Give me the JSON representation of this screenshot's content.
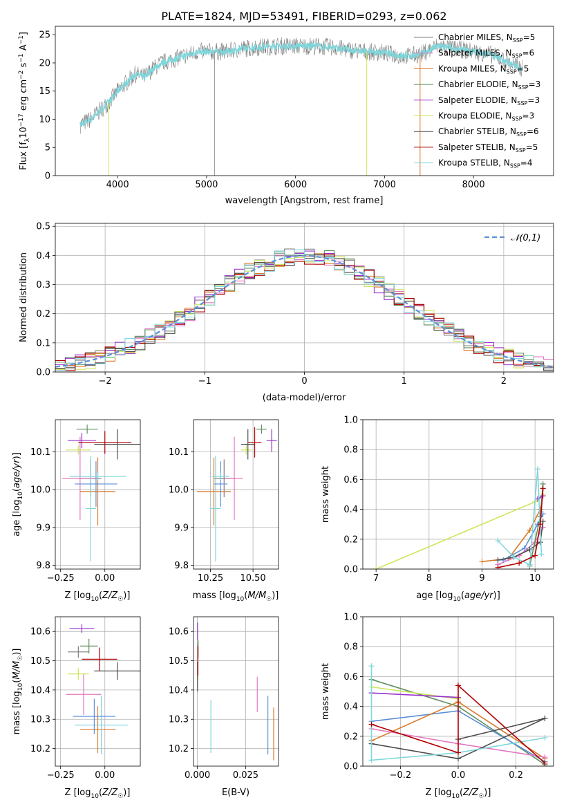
{
  "figure_title": "PLATE=1824, MJD=53491, FIBERID=0293, z=0.062",
  "colors": {
    "Chabrier MILES": "#7f7f7f",
    "Salpeter MILES": "#e377c2",
    "Kroupa MILES": "#d97a2a",
    "Chabrier ELODIE": "#5f8f5f",
    "Salpeter ELODIE": "#9933cc",
    "Kroupa ELODIE": "#cce65a",
    "Chabrier STELIB": "#4d4d4d",
    "Salpeter STELIB": "#b00000",
    "Kroupa STELIB": "#7fd6db",
    "gaussian": "#5b8fd9"
  },
  "model_order": [
    "Chabrier MILES",
    "Salpeter MILES",
    "Kroupa MILES",
    "Chabrier ELODIE",
    "Salpeter ELODIE",
    "Kroupa ELODIE",
    "Chabrier STELIB",
    "Salpeter STELIB",
    "Kroupa STELIB"
  ],
  "chart_data": [
    {
      "id": "spectrum",
      "type": "line",
      "xlabel": "wavelength [Angstrom, rest frame]",
      "ylabel": "Flux [f_λ 10^-17 erg cm^-2 s^-1 A^-1]",
      "xlim": [
        3300,
        8900
      ],
      "ylim": [
        0,
        26.5
      ],
      "xticks": [
        4000,
        5000,
        6000,
        7000,
        8000
      ],
      "yticks": [
        0,
        5,
        10,
        15,
        20,
        25
      ],
      "legend_position": "top-right",
      "legend": [
        {
          "base": "Chabrier MILES, N",
          "sub": "SSP",
          "tail": "=5"
        },
        {
          "base": "Salpeter MILES, N",
          "sub": "SSP",
          "tail": "=6"
        },
        {
          "base": "Kroupa MILES, N",
          "sub": "SSP",
          "tail": "=5"
        },
        {
          "base": "Chabrier ELODIE, N",
          "sub": "SSP",
          "tail": "=3"
        },
        {
          "base": "Salpeter ELODIE, N",
          "sub": "SSP",
          "tail": "=3"
        },
        {
          "base": "Kroupa ELODIE, N",
          "sub": "SSP",
          "tail": "=3"
        },
        {
          "base": "Chabrier STELIB, N",
          "sub": "SSP",
          "tail": "=6"
        },
        {
          "base": "Salpeter STELIB, N",
          "sub": "SSP",
          "tail": "=5"
        },
        {
          "base": "Kroupa STELIB, N",
          "sub": "SSP",
          "tail": "=4"
        }
      ],
      "data_color": "#7f7f7f",
      "model_color": "#7fd6db",
      "continuum": [
        [
          3580,
          9
        ],
        [
          3700,
          10
        ],
        [
          3800,
          11.5
        ],
        [
          3900,
          13
        ],
        [
          4000,
          15
        ],
        [
          4100,
          16.5
        ],
        [
          4200,
          18
        ],
        [
          4300,
          17.5
        ],
        [
          4400,
          19
        ],
        [
          4500,
          20
        ],
        [
          4600,
          20.5
        ],
        [
          4700,
          21
        ],
        [
          4800,
          21.5
        ],
        [
          4900,
          22
        ],
        [
          5000,
          22
        ],
        [
          5200,
          22
        ],
        [
          5400,
          22.5
        ],
        [
          5600,
          22.8
        ],
        [
          5800,
          23
        ],
        [
          6000,
          23
        ],
        [
          6200,
          23
        ],
        [
          6400,
          22.8
        ],
        [
          6600,
          22.3
        ],
        [
          6800,
          22
        ],
        [
          7000,
          21.8
        ],
        [
          7200,
          21.2
        ],
        [
          7400,
          21.5
        ],
        [
          7600,
          23
        ],
        [
          7800,
          22.5
        ],
        [
          8000,
          22
        ],
        [
          8200,
          21.5
        ],
        [
          8400,
          20
        ],
        [
          8550,
          19
        ]
      ]
    },
    {
      "id": "residuals",
      "type": "histogram",
      "xlabel": "(data-model)/error",
      "ylabel": "Normed distribution",
      "xlim": [
        -2.5,
        2.5
      ],
      "ylim": [
        0,
        0.51
      ],
      "xticks": [
        -2,
        -1,
        0,
        1,
        2
      ],
      "yticks": [
        0.0,
        0.1,
        0.2,
        0.3,
        0.4,
        0.5
      ],
      "legend_label": "𝒩(0,1)",
      "legend_position": "top-right",
      "bin_width": 0.1
    },
    {
      "id": "age-vs-Z",
      "type": "scatter-errorbar",
      "xlabel": "Z [log10(Z/Z☉)]",
      "ylabel": "age [log10(age/yr)]",
      "xlim": [
        -0.28,
        0.2
      ],
      "ylim": [
        9.79,
        10.185
      ],
      "xticks": [
        -0.25,
        0.0
      ],
      "yticks": [
        9.8,
        9.9,
        10.0,
        10.1
      ],
      "points": [
        {
          "model": "Chabrier MILES",
          "x": -0.08,
          "xerr": 0.06,
          "y": 10.03,
          "yerr": 0.05
        },
        {
          "model": "Salpeter MILES",
          "x": -0.14,
          "xerr": 0.1,
          "y": 10.03,
          "yerr": 0.11
        },
        {
          "model": "Kroupa MILES",
          "x": -0.04,
          "xerr": 0.1,
          "y": 9.995,
          "yerr": 0.09
        },
        {
          "model": "Chabrier ELODIE",
          "x": -0.1,
          "xerr": 0.06,
          "y": 10.16,
          "yerr": 0.012
        },
        {
          "model": "Salpeter ELODIE",
          "x": -0.13,
          "xerr": 0.08,
          "y": 10.13,
          "yerr": 0.02
        },
        {
          "model": "Kroupa ELODIE",
          "x": -0.15,
          "xerr": 0.07,
          "y": 10.105,
          "yerr": 0.012
        },
        {
          "model": "Chabrier STELIB",
          "x": 0.07,
          "xerr": 0.13,
          "y": 10.12,
          "yerr": 0.04
        },
        {
          "model": "Salpeter STELIB",
          "x": 0.0,
          "xerr": 0.15,
          "y": 10.125,
          "yerr": 0.03
        },
        {
          "model": "Kroupa STELIB",
          "x": -0.08,
          "xerr": 0.03,
          "y": 9.95,
          "yerr": 0.14
        },
        {
          "model": "gaussian",
          "x": -0.05,
          "xerr": 0.12,
          "y": 10.015,
          "yerr": 0.06
        },
        {
          "model": "Kroupa STELIB",
          "x": -0.04,
          "xerr": 0.16,
          "y": 10.035,
          "yerr": 0.01
        }
      ]
    },
    {
      "id": "age-vs-mass",
      "type": "scatter-errorbar",
      "xlabel": "mass [log10(M/M☉)]",
      "ylabel": "",
      "xlim": [
        10.15,
        10.65
      ],
      "ylim": [
        9.79,
        10.185
      ],
      "xticks": [
        10.25,
        10.5
      ],
      "yticks": [
        9.8,
        9.9,
        10.0,
        10.1
      ],
      "points": [
        {
          "model": "Chabrier MILES",
          "x": 10.33,
          "xerr": 0.06,
          "y": 10.03,
          "yerr": 0.05
        },
        {
          "model": "Salpeter MILES",
          "x": 10.39,
          "xerr": 0.05,
          "y": 10.03,
          "yerr": 0.11
        },
        {
          "model": "Kroupa MILES",
          "x": 10.27,
          "xerr": 0.1,
          "y": 9.995,
          "yerr": 0.09
        },
        {
          "model": "Chabrier ELODIE",
          "x": 10.55,
          "xerr": 0.03,
          "y": 10.16,
          "yerr": 0.012
        },
        {
          "model": "Salpeter ELODIE",
          "x": 10.61,
          "xerr": 0.03,
          "y": 10.13,
          "yerr": 0.03
        },
        {
          "model": "Kroupa ELODIE",
          "x": 10.46,
          "xerr": 0.03,
          "y": 10.105,
          "yerr": 0.012
        },
        {
          "model": "Chabrier STELIB",
          "x": 10.47,
          "xerr": 0.04,
          "y": 10.12,
          "yerr": 0.04
        },
        {
          "model": "Salpeter STELIB",
          "x": 10.51,
          "xerr": 0.04,
          "y": 10.125,
          "yerr": 0.04
        },
        {
          "model": "Kroupa STELIB",
          "x": 10.28,
          "xerr": 0.03,
          "y": 9.95,
          "yerr": 0.14
        },
        {
          "model": "gaussian",
          "x": 10.31,
          "xerr": 0.04,
          "y": 10.015,
          "yerr": 0.06
        },
        {
          "model": "Kroupa STELIB",
          "x": 10.31,
          "xerr": 0.05,
          "y": 10.035,
          "yerr": 0.01
        }
      ]
    },
    {
      "id": "mass-vs-Z",
      "type": "scatter-errorbar",
      "xlabel": "Z [log10(Z/Z☉)]",
      "ylabel": "mass [log10(M/M☉)]",
      "xlim": [
        -0.28,
        0.2
      ],
      "ylim": [
        10.14,
        10.65
      ],
      "xticks": [
        -0.25,
        0.0
      ],
      "yticks": [
        10.2,
        10.3,
        10.4,
        10.5,
        10.6
      ],
      "points": [
        {
          "model": "Chabrier MILES",
          "x": -0.15,
          "xerr": 0.06,
          "y": 10.53,
          "yerr": 0.02
        },
        {
          "model": "Salpeter MILES",
          "x": -0.12,
          "xerr": 0.1,
          "y": 10.385,
          "yerr": 0.07
        },
        {
          "model": "Kroupa MILES",
          "x": -0.04,
          "xerr": 0.1,
          "y": 10.265,
          "yerr": 0.08
        },
        {
          "model": "Chabrier ELODIE",
          "x": -0.09,
          "xerr": 0.05,
          "y": 10.55,
          "yerr": 0.025
        },
        {
          "model": "Salpeter ELODIE",
          "x": -0.13,
          "xerr": 0.07,
          "y": 10.61,
          "yerr": 0.015
        },
        {
          "model": "Kroupa ELODIE",
          "x": -0.15,
          "xerr": 0.06,
          "y": 10.455,
          "yerr": 0.02
        },
        {
          "model": "Chabrier STELIB",
          "x": 0.07,
          "xerr": 0.13,
          "y": 10.465,
          "yerr": 0.03
        },
        {
          "model": "Salpeter STELIB",
          "x": -0.03,
          "xerr": 0.1,
          "y": 10.505,
          "yerr": 0.04
        },
        {
          "model": "Kroupa STELIB",
          "x": -0.02,
          "xerr": 0.15,
          "y": 10.28,
          "yerr": 0.1
        },
        {
          "model": "gaussian",
          "x": -0.06,
          "xerr": 0.12,
          "y": 10.31,
          "yerr": 0.06
        }
      ]
    },
    {
      "id": "mass-vs-ebv",
      "type": "scatter-errorbar",
      "xlabel": "E(B-V)",
      "ylabel": "",
      "xlim": [
        -0.002,
        0.042
      ],
      "ylim": [
        10.14,
        10.65
      ],
      "xticks": [
        0.0,
        0.025
      ],
      "yticks": [
        10.2,
        10.3,
        10.4,
        10.5,
        10.6
      ],
      "points": [
        {
          "model": "Chabrier MILES",
          "x": 0.0002,
          "y": 10.53,
          "yerr": 0.03
        },
        {
          "model": "Salpeter MILES",
          "x": 0.031,
          "y": 10.385,
          "yerr": 0.06
        },
        {
          "model": "Kroupa MILES",
          "x": 0.0395,
          "y": 10.25,
          "yerr": 0.09
        },
        {
          "model": "Chabrier ELODIE",
          "x": 0.0004,
          "y": 10.54,
          "yerr": 0.03
        },
        {
          "model": "Salpeter ELODIE",
          "x": 0.0001,
          "y": 10.6,
          "yerr": 0.03
        },
        {
          "model": "Kroupa ELODIE",
          "x": 0.0003,
          "y": 10.455,
          "yerr": 0.02
        },
        {
          "model": "Chabrier STELIB",
          "x": 0.0001,
          "y": 10.445,
          "yerr": 0.05
        },
        {
          "model": "Salpeter STELIB",
          "x": 0.0003,
          "y": 10.5,
          "yerr": 0.05
        },
        {
          "model": "Kroupa STELIB",
          "x": 0.007,
          "y": 10.275,
          "yerr": 0.09
        },
        {
          "model": "gaussian",
          "x": 0.0365,
          "y": 10.28,
          "yerr": 0.1
        }
      ]
    },
    {
      "id": "weight-vs-age",
      "type": "line",
      "xlabel": "age  [log10(age/yr)]",
      "ylabel": "mass weight",
      "xlim": [
        6.75,
        10.35
      ],
      "ylim": [
        0,
        1.0
      ],
      "xticks": [
        7,
        8,
        9,
        10
      ],
      "yticks": [
        0.0,
        0.2,
        0.4,
        0.6,
        0.8,
        1.0
      ],
      "series": [
        {
          "model": "Kroupa ELODIE",
          "x": [
            7.0,
            10.0,
            10.15
          ],
          "y": [
            0.0,
            0.45,
            0.5
          ]
        },
        {
          "model": "Kroupa MILES",
          "x": [
            9.0,
            9.5,
            9.9,
            10.1
          ],
          "y": [
            0.05,
            0.07,
            0.26,
            0.4
          ]
        },
        {
          "model": "Salpeter MILES",
          "x": [
            9.3,
            9.7,
            10.0,
            10.15
          ],
          "y": [
            0.03,
            0.09,
            0.18,
            0.28
          ]
        },
        {
          "model": "gaussian",
          "x": [
            9.4,
            9.8,
            10.05,
            10.15
          ],
          "y": [
            0.06,
            0.14,
            0.3,
            0.37
          ]
        },
        {
          "model": "Chabrier STELIB",
          "x": [
            9.3,
            9.6,
            9.9,
            10.1,
            10.15
          ],
          "y": [
            0.06,
            0.08,
            0.13,
            0.18,
            0.32
          ]
        },
        {
          "model": "Chabrier ELODIE",
          "x": [
            9.9,
            10.1,
            10.15
          ],
          "y": [
            0.02,
            0.35,
            0.57
          ]
        },
        {
          "model": "Salpeter ELODIE",
          "x": [
            10.05,
            10.15
          ],
          "y": [
            0.47,
            0.49
          ]
        },
        {
          "model": "Kroupa STELIB",
          "x": [
            9.3,
            9.6,
            9.9,
            10.05,
            10.12
          ],
          "y": [
            0.19,
            0.08,
            0.03,
            0.67,
            0.1
          ]
        },
        {
          "model": "Salpeter STELIB",
          "x": [
            9.3,
            9.7,
            10.0,
            10.1,
            10.15
          ],
          "y": [
            0.01,
            0.04,
            0.09,
            0.3,
            0.54
          ]
        }
      ]
    },
    {
      "id": "weight-vs-Z",
      "type": "line",
      "xlabel": "Z [log10(Z/Z☉)]",
      "ylabel": "mass weight",
      "xlim": [
        -0.33,
        0.33
      ],
      "ylim": [
        0,
        1.0
      ],
      "xticks": [
        -0.2,
        0.0,
        0.2
      ],
      "yticks": [
        0.0,
        0.2,
        0.4,
        0.6,
        0.8,
        1.0
      ],
      "series": [
        {
          "model": "Chabrier ELODIE",
          "x": [
            -0.3,
            0.0,
            0.3
          ],
          "y": [
            0.58,
            0.4,
            0.01
          ]
        },
        {
          "model": "Kroupa ELODIE",
          "x": [
            -0.3,
            0.0
          ],
          "y": [
            0.53,
            0.45
          ]
        },
        {
          "model": "Salpeter ELODIE",
          "x": [
            -0.3,
            0.0
          ],
          "y": [
            0.49,
            0.46
          ]
        },
        {
          "model": "gaussian",
          "x": [
            -0.3,
            0.0,
            0.3
          ],
          "y": [
            0.3,
            0.37,
            0.03
          ]
        },
        {
          "model": "Kroupa MILES",
          "x": [
            -0.3,
            0.0,
            0.3
          ],
          "y": [
            0.17,
            0.43,
            0.05
          ]
        },
        {
          "model": "Salpeter MILES",
          "x": [
            -0.3,
            0.0,
            0.3
          ],
          "y": [
            0.25,
            0.15,
            0.06
          ]
        },
        {
          "model": "Chabrier STELIB",
          "x": [
            -0.3,
            0.0,
            0.3
          ],
          "y": [
            0.15,
            0.05,
            0.32
          ]
        },
        {
          "model": "Chabrier STELIB",
          "x": [
            0.0,
            0.3
          ],
          "y": [
            0.18,
            0.32
          ]
        },
        {
          "model": "Kroupa STELIB",
          "x": [
            -0.3,
            -0.3,
            0.0,
            0.3
          ],
          "y": [
            0.67,
            0.04,
            0.09,
            0.19
          ]
        },
        {
          "model": "Salpeter STELIB",
          "x": [
            -0.3,
            0.0,
            0.0,
            0.3
          ],
          "y": [
            0.28,
            0.09,
            0.54,
            0.02
          ]
        }
      ]
    }
  ]
}
